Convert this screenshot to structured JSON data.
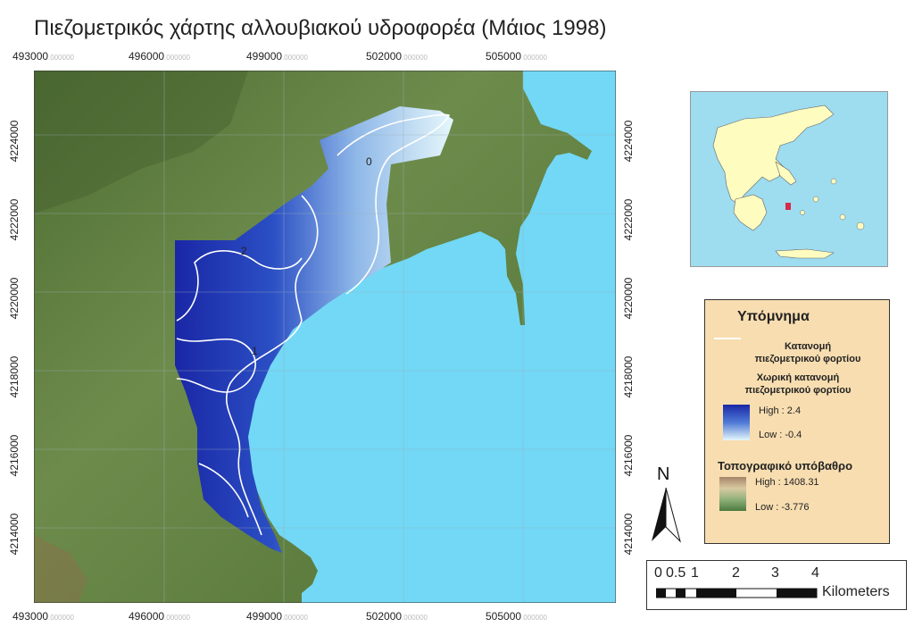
{
  "title": "Πιεζομετρικός χάρτης αλλουβιακού υδροφορέα (Μάιος 1998)",
  "axes": {
    "x_ticks": [
      "493000",
      "496000",
      "499000",
      "502000",
      "505000"
    ],
    "y_ticks": [
      "4224000",
      "4222000",
      "4220000",
      "4218000",
      "4216000",
      "4214000"
    ],
    "decimal_suffix": ".000000"
  },
  "contour_labels": [
    "0",
    "1",
    "2"
  ],
  "legend": {
    "title": "Υπόμνημα",
    "contour_line_label_1": "Κατανομή",
    "contour_line_label_2": "πιεζομετρικού φορτίου",
    "spatial_label_1": "Χωρική κατανομή",
    "spatial_label_2": "πιεζομετρικού φορτίου",
    "spatial_high": "High : 2.4",
    "spatial_low": "Low : -0.4",
    "topo_label": "Τοπογραφικό υπόβαθρο",
    "topo_high": "High : 1408.31",
    "topo_low": "Low : -3.776"
  },
  "north_arrow": "N",
  "scale_bar": {
    "labels": [
      "0",
      "0.5",
      "1",
      "2",
      "3",
      "4"
    ],
    "unit": "Kilometers"
  },
  "colors": {
    "sea": "#72d8f6",
    "terrain": "#5c7d3f",
    "piezo_high": "#1a27a6",
    "piezo_low": "#e6f7fb",
    "legend_bg": "#f7ddb0",
    "inset_sea": "#9edcf0",
    "inset_land": "#fffcc0"
  }
}
